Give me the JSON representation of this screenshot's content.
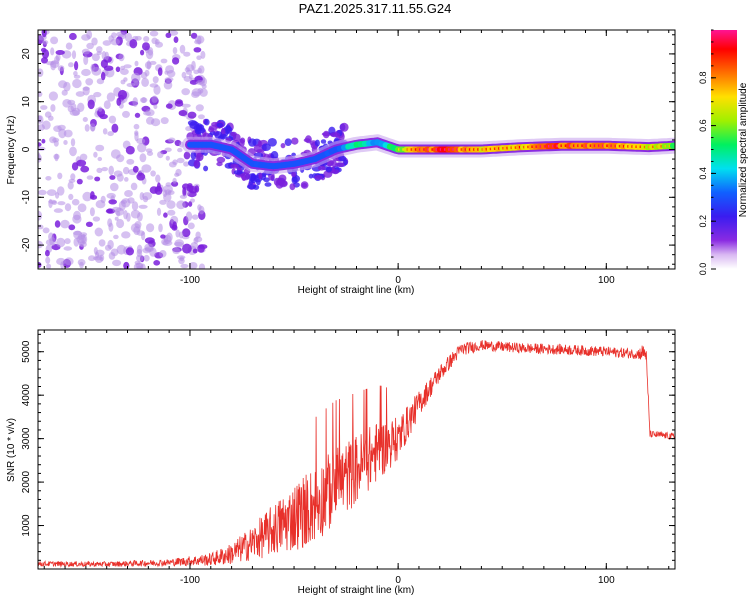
{
  "title": "PAZ1.2025.317.11.55.G24",
  "colors": {
    "snr_line": "#e8302a",
    "axis": "#000000",
    "spec_low": "#7a1fdc",
    "spec_scatter": "#b48ee6"
  },
  "chart_data": [
    {
      "type": "heatmap",
      "title": "",
      "xlabel": "Height of straight line (km)",
      "ylabel": "Frequency (Hz)",
      "xlim": [
        -173,
        133
      ],
      "ylim": [
        -25,
        25
      ],
      "xticks": [
        -100,
        0,
        100
      ],
      "yticks": [
        -20,
        -10,
        0,
        10,
        20
      ],
      "colorbar": {
        "label": "Normalized spectral amplitude",
        "range": [
          0,
          1
        ],
        "ticks": [
          0.0,
          0.2,
          0.4,
          0.6,
          0.8
        ],
        "tick_labels": [
          "0.0",
          "0.2",
          "0.4",
          "0.6",
          "0.8"
        ],
        "colormap": [
          "#ffffff",
          "#8a2be2",
          "#3a1cf0",
          "#1060ff",
          "#00e0f0",
          "#00f060",
          "#a0f000",
          "#ffe000",
          "#ff7000",
          "#ff0000",
          "#ff1493"
        ]
      },
      "ridge": {
        "x": [
          -100,
          -90,
          -80,
          -70,
          -60,
          -50,
          -40,
          -30,
          -20,
          -10,
          0,
          20,
          40,
          60,
          80,
          100,
          120,
          133
        ],
        "freq": [
          1,
          1,
          0,
          -3,
          -3.5,
          -3,
          -2,
          0,
          1,
          1.5,
          0,
          0,
          0,
          0.5,
          0.8,
          0.8,
          0.5,
          0.8
        ],
        "amplitude": [
          0.12,
          0.15,
          0.2,
          0.25,
          0.2,
          0.18,
          0.22,
          0.3,
          0.45,
          0.4,
          0.6,
          0.9,
          0.7,
          0.75,
          0.85,
          0.75,
          0.7,
          0.6
        ]
      },
      "noise_region_x": [
        -173,
        -93
      ]
    },
    {
      "type": "line",
      "title": "",
      "xlabel": "Height of straight line (km)",
      "ylabel": "SNR (10 * v/v)",
      "xlim": [
        -173,
        133
      ],
      "ylim": [
        0,
        5500
      ],
      "xticks": [
        -100,
        0,
        100
      ],
      "yticks": [
        1000,
        2000,
        3000,
        4000,
        5000
      ],
      "series": [
        {
          "name": "SNR",
          "envelope_x": [
            -173,
            -140,
            -110,
            -90,
            -80,
            -70,
            -60,
            -50,
            -40,
            -30,
            -20,
            -10,
            0,
            10,
            20,
            30,
            40,
            60,
            80,
            100,
            115,
            119,
            121,
            133
          ],
          "envelope_mean": [
            120,
            110,
            150,
            220,
            350,
            600,
            900,
            1200,
            1500,
            1900,
            2300,
            2700,
            3000,
            3800,
            4500,
            5050,
            5150,
            5080,
            5050,
            5000,
            4950,
            5000,
            3100,
            3050
          ],
          "envelope_spread": [
            60,
            60,
            80,
            150,
            250,
            400,
            600,
            800,
            900,
            900,
            800,
            700,
            500,
            300,
            200,
            150,
            120,
            120,
            120,
            120,
            120,
            250,
            80,
            80
          ]
        }
      ]
    }
  ]
}
